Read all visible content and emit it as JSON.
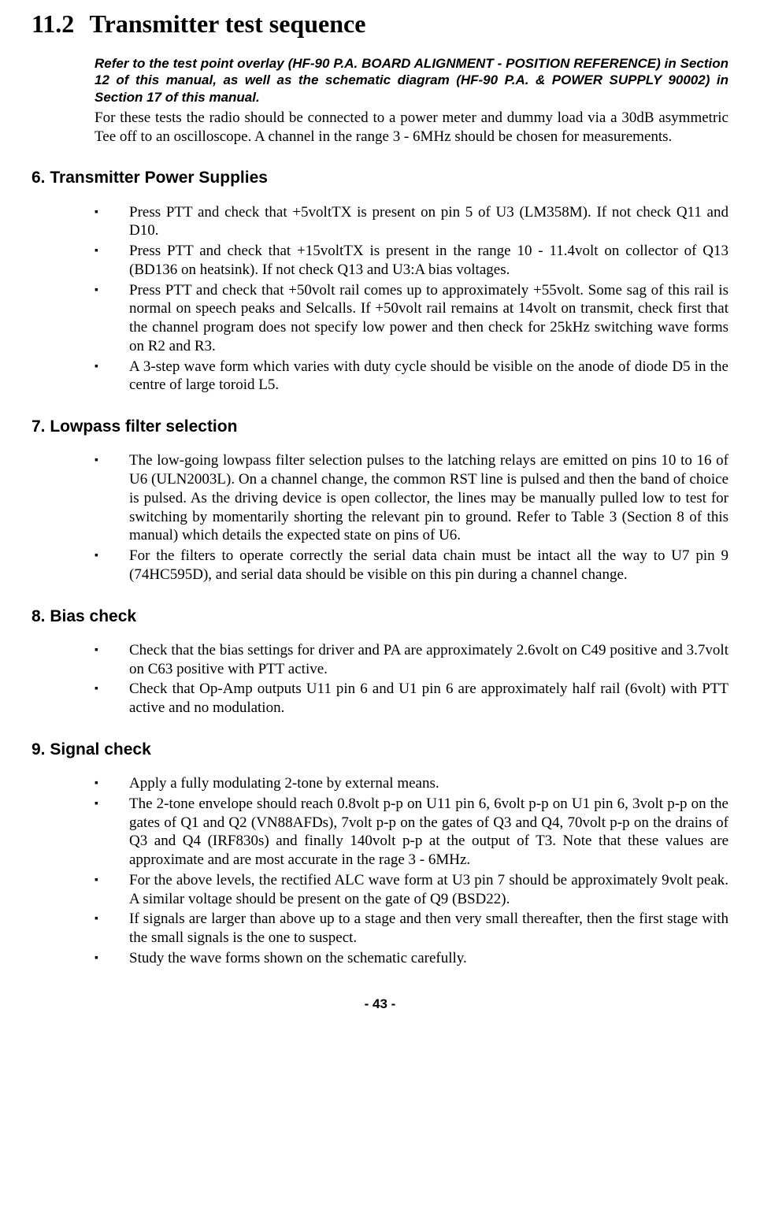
{
  "mainTitle": {
    "number": "11.2",
    "text": "Transmitter test sequence"
  },
  "referenceNote": "Refer to the test point overlay (HF-90 P.A. BOARD ALIGNMENT - POSITION REFERENCE) in Section 12 of this manual, as well as the schematic diagram (HF-90 P.A. & POWER SUPPLY 90002) in Section 17 of this manual.",
  "introText": "For these tests the radio should be connected to a power meter and dummy load via a 30dB asymmetric Tee off to an oscilloscope.  A channel in the range 3 - 6MHz should be chosen for measurements.",
  "sections": [
    {
      "number": "6.",
      "title": "Transmitter Power Supplies",
      "items": [
        "Press PTT and check that +5voltTX is present on pin 5 of U3 (LM358M).  If not check Q11 and D10.",
        "Press PTT and check that +15voltTX is present in the range 10 - 11.4volt on collector of Q13 (BD136 on heatsink).  If not check Q13 and U3:A bias voltages.",
        "Press PTT and check that +50volt rail comes up to approximately +55volt.  Some sag of this rail is normal on speech peaks and Selcalls.  If +50volt rail remains at 14volt on transmit, check first that the channel program does not specify low power and then check for 25kHz switching wave forms on R2 and R3.",
        "A 3-step wave form which varies with duty cycle should be visible on the anode of diode D5 in the centre of large toroid L5."
      ]
    },
    {
      "number": "7.",
      "title": "Lowpass filter selection",
      "items": [
        "The low-going lowpass filter selection pulses to the latching relays are emitted on pins 10 to 16 of U6 (ULN2003L).  On a channel change, the common RST line is pulsed and then the band of choice is pulsed.  As the driving device is open collector, the lines may be manually pulled low to test for switching by momentarily shorting the relevant pin to ground.  Refer to Table 3 (Section 8 of this manual) which details the expected state on pins of U6.",
        "For the filters to operate correctly the serial data chain must be intact all the way to U7 pin 9 (74HC595D), and serial data should be visible on this pin during a channel change."
      ]
    },
    {
      "number": "8.",
      "title": "Bias check",
      "items": [
        "Check that the bias settings for driver and PA are approximately 2.6volt on C49 positive and 3.7volt on C63 positive with PTT active.",
        "Check that Op-Amp outputs U11 pin 6 and U1 pin 6 are approximately half rail (6volt) with PTT active and no modulation."
      ]
    },
    {
      "number": "9.",
      "title": "Signal check",
      "items": [
        "Apply a fully modulating 2-tone by external means.",
        "The 2-tone envelope should reach 0.8volt p-p on U11 pin 6, 6volt p-p on U1 pin 6, 3volt p-p on the gates of Q1 and Q2 (VN88AFDs), 7volt p-p on the gates of Q3 and Q4, 70volt p-p on the drains of Q3 and Q4 (IRF830s) and finally 140volt p-p at the output of T3.  Note that these values are approximate and are most accurate in the rage 3 - 6MHz.",
        "For the above levels, the rectified ALC wave form at U3 pin 7 should be approximately 9volt peak.  A similar voltage should be present on the gate of Q9 (BSD22).",
        "If signals are larger than above up to a stage and then very small thereafter, then the first stage with the small signals is the one to suspect.",
        "Study the wave forms shown on the schematic carefully."
      ]
    }
  ],
  "pageNumber": "- 43 -"
}
